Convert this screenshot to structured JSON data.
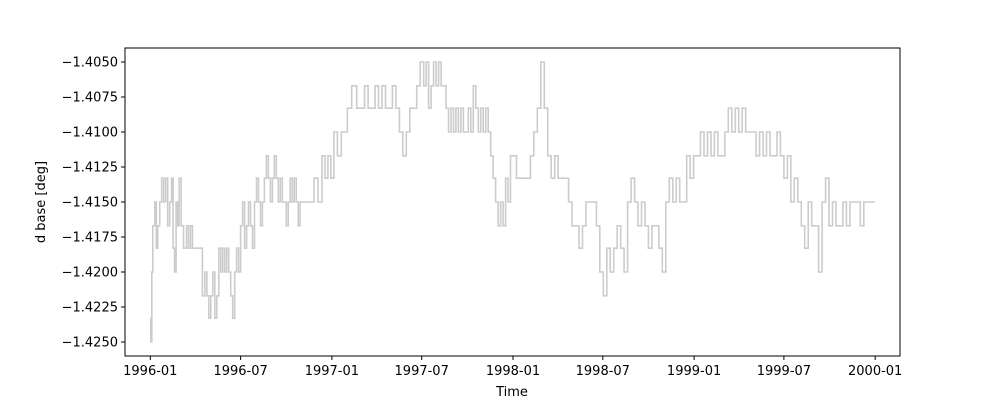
{
  "chart_data": {
    "type": "line",
    "xlabel": "Time",
    "ylabel": "d base [deg]",
    "xlim": [
      "1995-11-11",
      "2000-02-20"
    ],
    "ylim": [
      -1.426,
      -1.404
    ],
    "x_ticks": [
      {
        "date": "1996-01-01",
        "label": "1996-01"
      },
      {
        "date": "1996-07-01",
        "label": "1996-07"
      },
      {
        "date": "1997-01-01",
        "label": "1997-01"
      },
      {
        "date": "1997-07-01",
        "label": "1997-07"
      },
      {
        "date": "1998-01-01",
        "label": "1998-01"
      },
      {
        "date": "1998-07-01",
        "label": "1998-07"
      },
      {
        "date": "1999-01-01",
        "label": "1999-01"
      },
      {
        "date": "1999-07-01",
        "label": "1999-07"
      },
      {
        "date": "2000-01-01",
        "label": "2000-01"
      }
    ],
    "y_ticks": [
      {
        "value": -1.425,
        "label": "−1.4250"
      },
      {
        "value": -1.4225,
        "label": "−1.4225"
      },
      {
        "value": -1.42,
        "label": "−1.4200"
      },
      {
        "value": -1.4175,
        "label": "−1.4175"
      },
      {
        "value": -1.415,
        "label": "−1.4150"
      },
      {
        "value": -1.4125,
        "label": "−1.4125"
      },
      {
        "value": -1.41,
        "label": "−1.4100"
      },
      {
        "value": -1.4075,
        "label": "−1.4075"
      },
      {
        "value": -1.405,
        "label": "−1.4050"
      }
    ],
    "grid": false,
    "series": [
      {
        "color": "#cccccc",
        "step": true,
        "x": [
          "1996-01-01",
          "1996-01-02",
          "1996-01-04",
          "1996-01-06",
          "1996-01-10",
          "1996-01-13",
          "1996-01-16",
          "1996-01-20",
          "1996-01-24",
          "1996-01-28",
          "1996-02-01",
          "1996-02-05",
          "1996-02-09",
          "1996-02-13",
          "1996-02-16",
          "1996-02-19",
          "1996-02-22",
          "1996-02-25",
          "1996-02-28",
          "1996-03-03",
          "1996-03-08",
          "1996-03-14",
          "1996-03-18",
          "1996-03-22",
          "1996-03-26",
          "1996-03-30",
          "1996-04-05",
          "1996-04-15",
          "1996-04-20",
          "1996-04-24",
          "1996-04-28",
          "1996-05-02",
          "1996-05-06",
          "1996-05-10",
          "1996-05-14",
          "1996-05-18",
          "1996-05-22",
          "1996-05-26",
          "1996-05-30",
          "1996-06-03",
          "1996-06-07",
          "1996-06-11",
          "1996-06-15",
          "1996-06-19",
          "1996-06-23",
          "1996-06-27",
          "1996-07-01",
          "1996-07-05",
          "1996-07-09",
          "1996-07-13",
          "1996-07-17",
          "1996-07-21",
          "1996-07-25",
          "1996-07-29",
          "1996-08-02",
          "1996-08-06",
          "1996-08-10",
          "1996-08-14",
          "1996-08-18",
          "1996-08-22",
          "1996-08-26",
          "1996-08-30",
          "1996-09-03",
          "1996-09-07",
          "1996-09-11",
          "1996-09-15",
          "1996-09-19",
          "1996-09-23",
          "1996-09-27",
          "1996-10-01",
          "1996-10-05",
          "1996-10-09",
          "1996-10-13",
          "1996-10-17",
          "1996-10-21",
          "1996-10-25",
          "1996-10-29",
          "1996-11-02",
          "1996-11-10",
          "1996-11-18",
          "1996-11-26",
          "1996-12-04",
          "1996-12-12",
          "1996-12-18",
          "1996-12-24",
          "1996-12-30",
          "1997-01-05",
          "1997-01-12",
          "1997-01-20",
          "1997-02-01",
          "1997-02-10",
          "1997-02-20",
          "1997-03-01",
          "1997-03-08",
          "1997-03-15",
          "1997-03-22",
          "1997-03-29",
          "1997-04-05",
          "1997-04-12",
          "1997-04-19",
          "1997-04-26",
          "1997-05-03",
          "1997-05-10",
          "1997-05-17",
          "1997-05-24",
          "1997-05-31",
          "1997-06-07",
          "1997-06-14",
          "1997-06-21",
          "1997-06-28",
          "1997-07-05",
          "1997-07-10",
          "1997-07-15",
          "1997-07-20",
          "1997-07-25",
          "1997-07-30",
          "1997-08-04",
          "1997-08-09",
          "1997-08-14",
          "1997-08-19",
          "1997-08-24",
          "1997-08-29",
          "1997-09-03",
          "1997-09-08",
          "1997-09-13",
          "1997-09-18",
          "1997-09-23",
          "1997-09-28",
          "1997-10-03",
          "1997-10-08",
          "1997-10-13",
          "1997-10-18",
          "1997-10-23",
          "1997-10-28",
          "1997-11-02",
          "1997-11-07",
          "1997-11-12",
          "1997-11-17",
          "1997-11-22",
          "1997-11-27",
          "1997-12-02",
          "1997-12-07",
          "1997-12-12",
          "1997-12-17",
          "1997-12-22",
          "1997-12-27",
          "1998-01-01",
          "1998-01-08",
          "1998-01-15",
          "1998-01-22",
          "1998-01-29",
          "1998-02-05",
          "1998-02-12",
          "1998-02-19",
          "1998-02-26",
          "1998-03-05",
          "1998-03-12",
          "1998-03-19",
          "1998-03-26",
          "1998-04-02",
          "1998-04-09",
          "1998-04-16",
          "1998-04-23",
          "1998-04-30",
          "1998-05-07",
          "1998-05-14",
          "1998-05-21",
          "1998-05-28",
          "1998-06-04",
          "1998-06-11",
          "1998-06-18",
          "1998-06-25",
          "1998-07-02",
          "1998-07-09",
          "1998-07-16",
          "1998-07-23",
          "1998-07-30",
          "1998-08-06",
          "1998-08-13",
          "1998-08-20",
          "1998-08-27",
          "1998-09-03",
          "1998-09-10",
          "1998-09-17",
          "1998-09-24",
          "1998-10-01",
          "1998-10-08",
          "1998-10-15",
          "1998-10-22",
          "1998-10-29",
          "1998-11-05",
          "1998-11-12",
          "1998-11-19",
          "1998-11-26",
          "1998-12-03",
          "1998-12-10",
          "1998-12-17",
          "1998-12-24",
          "1998-12-31",
          "1999-01-07",
          "1999-01-14",
          "1999-01-21",
          "1999-01-28",
          "1999-02-04",
          "1999-02-11",
          "1999-02-18",
          "1999-02-25",
          "1999-03-04",
          "1999-03-11",
          "1999-03-18",
          "1999-03-25",
          "1999-04-01",
          "1999-04-08",
          "1999-04-15",
          "1999-04-22",
          "1999-04-29",
          "1999-05-06",
          "1999-05-13",
          "1999-05-20",
          "1999-05-27",
          "1999-06-03",
          "1999-06-10",
          "1999-06-17",
          "1999-06-24",
          "1999-07-01",
          "1999-07-08",
          "1999-07-15",
          "1999-07-22",
          "1999-07-29",
          "1999-08-05",
          "1999-08-12",
          "1999-08-19",
          "1999-08-26",
          "1999-09-02",
          "1999-09-09",
          "1999-09-16",
          "1999-09-23",
          "1999-09-30",
          "1999-10-07",
          "1999-10-14",
          "1999-10-21",
          "1999-10-28",
          "1999-11-04",
          "1999-11-11",
          "1999-11-18",
          "1999-11-25",
          "1999-12-02",
          "1999-12-09",
          "1999-12-16",
          "1999-12-23",
          "1999-12-31"
        ],
        "y": [
          -1.4233,
          -1.425,
          -1.42,
          -1.4167,
          -1.415,
          -1.4183,
          -1.4167,
          -1.415,
          -1.4133,
          -1.415,
          -1.4133,
          -1.4167,
          -1.415,
          -1.4133,
          -1.4183,
          -1.42,
          -1.415,
          -1.4167,
          -1.4133,
          -1.4167,
          -1.4183,
          -1.4167,
          -1.4183,
          -1.4167,
          -1.4183,
          -1.4183,
          -1.4183,
          -1.4217,
          -1.42,
          -1.4217,
          -1.4233,
          -1.4217,
          -1.42,
          -1.4233,
          -1.4217,
          -1.4183,
          -1.42,
          -1.4183,
          -1.42,
          -1.4183,
          -1.42,
          -1.4217,
          -1.4233,
          -1.42,
          -1.4183,
          -1.42,
          -1.4167,
          -1.415,
          -1.4183,
          -1.4167,
          -1.415,
          -1.4167,
          -1.4183,
          -1.415,
          -1.4133,
          -1.415,
          -1.4167,
          -1.415,
          -1.4133,
          -1.4117,
          -1.4133,
          -1.415,
          -1.4133,
          -1.4117,
          -1.4133,
          -1.415,
          -1.4133,
          -1.415,
          -1.415,
          -1.4167,
          -1.415,
          -1.4133,
          -1.415,
          -1.4133,
          -1.415,
          -1.4167,
          -1.415,
          -1.415,
          -1.415,
          -1.415,
          -1.4133,
          -1.415,
          -1.4117,
          -1.4133,
          -1.4117,
          -1.4133,
          -1.41,
          -1.4117,
          -1.41,
          -1.4083,
          -1.4067,
          -1.4083,
          -1.4083,
          -1.4067,
          -1.4083,
          -1.4083,
          -1.4067,
          -1.4083,
          -1.4067,
          -1.4083,
          -1.4083,
          -1.4067,
          -1.4083,
          -1.41,
          -1.4117,
          -1.41,
          -1.4083,
          -1.4083,
          -1.4067,
          -1.405,
          -1.4067,
          -1.405,
          -1.4083,
          -1.4067,
          -1.405,
          -1.4067,
          -1.405,
          -1.4067,
          -1.4067,
          -1.4083,
          -1.41,
          -1.4083,
          -1.41,
          -1.4083,
          -1.41,
          -1.4083,
          -1.41,
          -1.41,
          -1.4083,
          -1.41,
          -1.4067,
          -1.4083,
          -1.41,
          -1.4083,
          -1.41,
          -1.4083,
          -1.41,
          -1.4117,
          -1.4133,
          -1.415,
          -1.4167,
          -1.415,
          -1.4167,
          -1.4133,
          -1.415,
          -1.4117,
          -1.4117,
          -1.4133,
          -1.4133,
          -1.4133,
          -1.4133,
          -1.4117,
          -1.41,
          -1.4083,
          -1.405,
          -1.4083,
          -1.4117,
          -1.4133,
          -1.4117,
          -1.4133,
          -1.4133,
          -1.4133,
          -1.415,
          -1.4167,
          -1.4167,
          -1.4183,
          -1.4167,
          -1.415,
          -1.415,
          -1.415,
          -1.4167,
          -1.42,
          -1.4217,
          -1.4183,
          -1.42,
          -1.4183,
          -1.4167,
          -1.4183,
          -1.42,
          -1.415,
          -1.4133,
          -1.415,
          -1.4167,
          -1.415,
          -1.4167,
          -1.4183,
          -1.4167,
          -1.4167,
          -1.4183,
          -1.42,
          -1.415,
          -1.4133,
          -1.415,
          -1.4133,
          -1.415,
          -1.415,
          -1.4117,
          -1.4133,
          -1.4117,
          -1.4117,
          -1.41,
          -1.4117,
          -1.41,
          -1.4117,
          -1.41,
          -1.4117,
          -1.4117,
          -1.41,
          -1.4083,
          -1.41,
          -1.4083,
          -1.41,
          -1.4083,
          -1.41,
          -1.41,
          -1.41,
          -1.4117,
          -1.41,
          -1.4117,
          -1.41,
          -1.4117,
          -1.4117,
          -1.41,
          -1.4117,
          -1.4133,
          -1.4117,
          -1.415,
          -1.4133,
          -1.415,
          -1.4167,
          -1.4183,
          -1.415,
          -1.4167,
          -1.4167,
          -1.42,
          -1.415,
          -1.4133,
          -1.4167,
          -1.415,
          -1.4167,
          -1.4167,
          -1.415,
          -1.4167,
          -1.415,
          -1.415,
          -1.415,
          -1.4167,
          -1.415,
          -1.415,
          -1.415,
          -1.415
        ]
      }
    ]
  }
}
